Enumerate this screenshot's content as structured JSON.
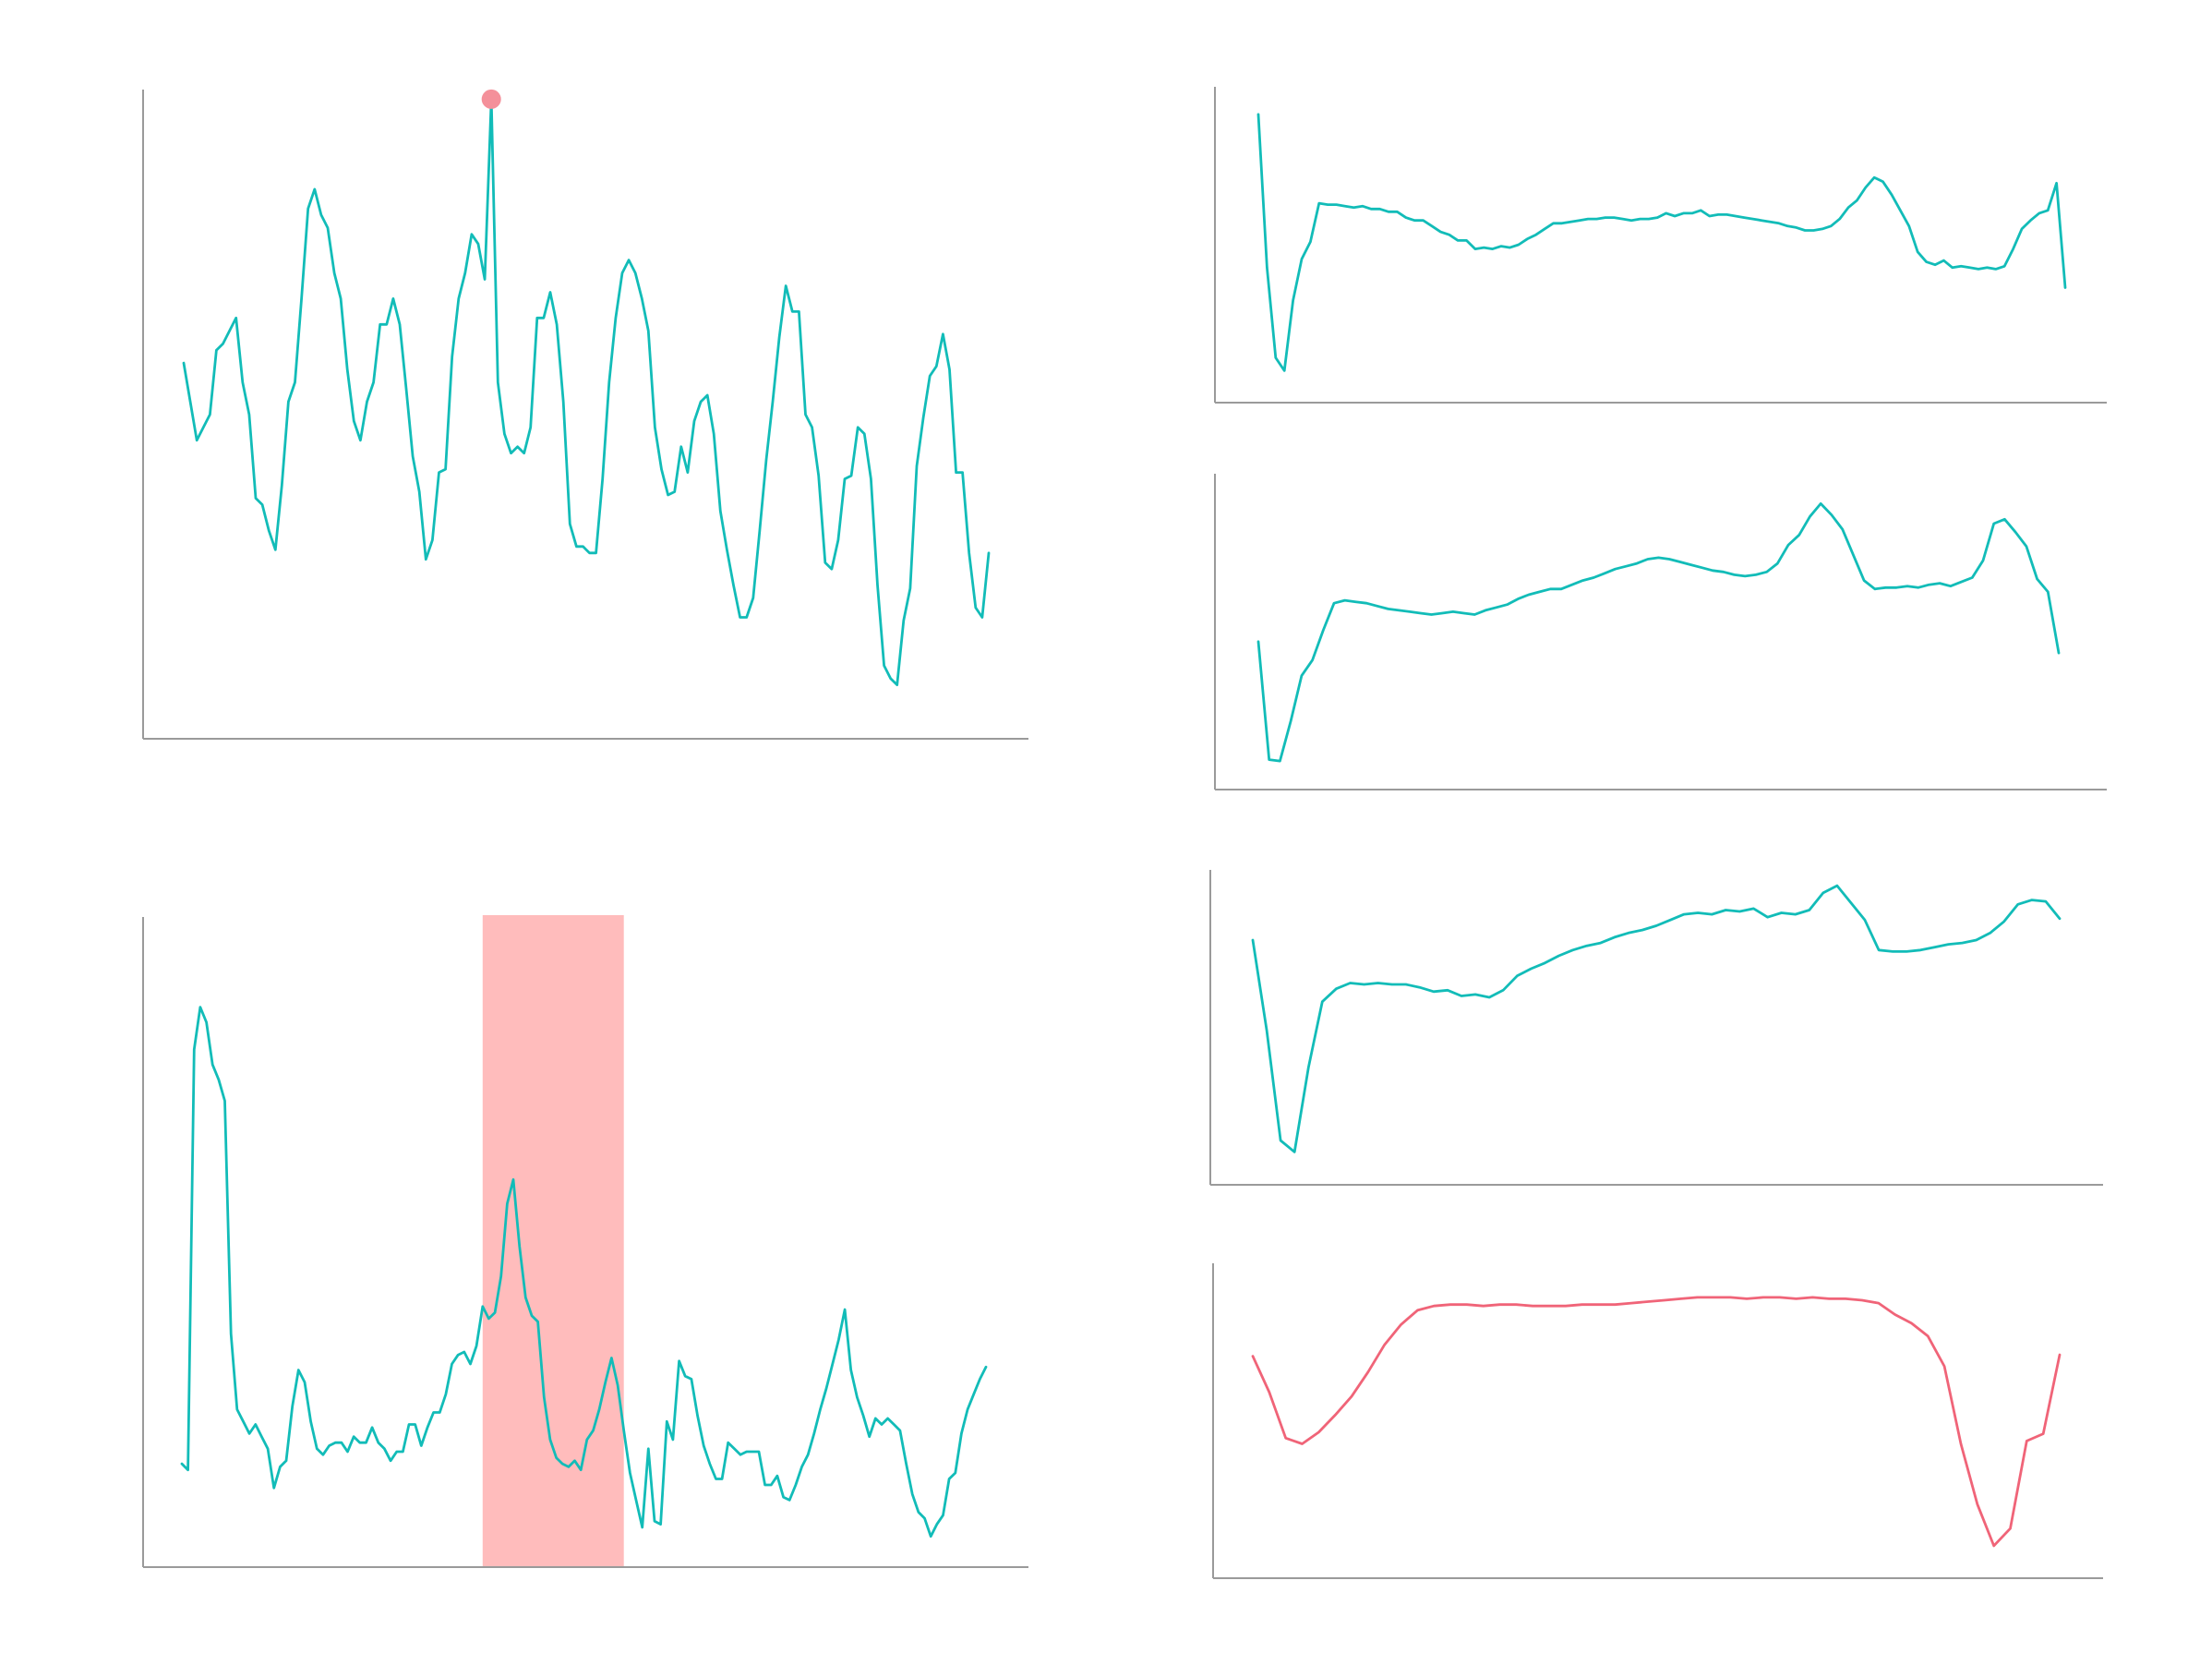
{
  "palette": {
    "primary": "#12bcb8",
    "alert": "#f06478",
    "marker": "#f4909a",
    "highlight": "#ff9c9c",
    "axis": "#9a9a9a"
  },
  "chart_data": [
    {
      "type": "line",
      "title": "",
      "xlabel": "",
      "ylabel": "",
      "grid": false,
      "axis_ticks": false,
      "ylim": [
        0,
        100
      ],
      "series": [
        {
          "color": "#12bcb8",
          "values": [
            54.5,
            48.5,
            42.5,
            44.5,
            46.5,
            56.5,
            57.5,
            59.5,
            61.5,
            51.5,
            46.5,
            33.5,
            32.5,
            28.5,
            25.5,
            35.5,
            48.5,
            51.5,
            64.5,
            78.5,
            81.5,
            77.5,
            75.5,
            68.5,
            64.5,
            53.5,
            45.5,
            42.5,
            48.5,
            51.5,
            60.5,
            60.5,
            64.5,
            60.5,
            50.5,
            40.0,
            34.5,
            24.0,
            27.0,
            37.5,
            38.0,
            55.5,
            64.5,
            68.5,
            74.5,
            73.0,
            67.5,
            95.5,
            51.5,
            43.5,
            40.5,
            41.5,
            40.5,
            44.5,
            61.5,
            61.5,
            65.5,
            60.5,
            48.5,
            29.5,
            26.0,
            26.0,
            25.0,
            25.0,
            36.5,
            51.5,
            61.5,
            68.5,
            70.5,
            68.5,
            64.5,
            59.5,
            44.5,
            38.0,
            34.0,
            34.5,
            41.5,
            37.5,
            45.5,
            48.5,
            49.5,
            43.5,
            31.5,
            25.5,
            20.0,
            15.0,
            15.0,
            18.0,
            28.5,
            39.5,
            48.5,
            58.5,
            66.5,
            62.5,
            62.5,
            46.5,
            44.5,
            37.0,
            23.5,
            22.5,
            27.0,
            36.5,
            37.0,
            44.5,
            43.5,
            36.5,
            20.0,
            7.5,
            5.5,
            4.5,
            14.5,
            19.5,
            38.5,
            46.0,
            52.5,
            54.0,
            59.0,
            53.5,
            37.5,
            37.5,
            25.0,
            16.5,
            15.0,
            25.0
          ]
        }
      ],
      "annotations": [
        {
          "kind": "point",
          "index": 47,
          "color": "#f4909a"
        }
      ]
    },
    {
      "type": "line",
      "title": "",
      "xlabel": "",
      "ylabel": "",
      "grid": false,
      "axis_ticks": false,
      "ylim": [
        0,
        100
      ],
      "series": [
        {
          "color": "#12bcb8",
          "values": [
            12.5,
            11.5,
            81.0,
            88.0,
            85.5,
            78.5,
            76.0,
            72.5,
            34.0,
            21.5,
            19.5,
            17.5,
            19.0,
            17.0,
            15.0,
            8.5,
            12.0,
            13.0,
            22.0,
            28.0,
            26.0,
            19.5,
            15.0,
            14.0,
            15.5,
            16.0,
            16.0,
            14.5,
            17.0,
            16.0,
            16.0,
            18.5,
            16.0,
            15.0,
            13.0,
            14.5,
            14.5,
            19.0,
            19.0,
            15.5,
            18.5,
            21.0,
            21.0,
            24.0,
            29.0,
            30.5,
            31.0,
            29.0,
            32.0,
            38.5,
            36.5,
            37.5,
            43.5,
            55.5,
            59.5,
            48.5,
            40.0,
            37.0,
            36.0,
            23.5,
            16.5,
            13.5,
            12.5,
            12.0,
            13.0,
            11.5,
            16.5,
            18.0,
            21.5,
            26.0,
            30.0,
            25.5,
            18.0,
            11.0,
            6.5,
            2.0,
            15.0,
            3.0,
            2.5,
            19.5,
            16.5,
            29.5,
            27.0,
            26.5,
            20.5,
            15.5,
            12.5,
            10.0,
            10.0,
            16.0,
            15.0,
            14.0,
            14.5,
            14.5,
            14.5,
            9.0,
            9.0,
            10.5,
            7.0,
            6.5,
            9.0,
            12.0,
            14.0,
            17.5,
            21.5,
            25.0,
            29.0,
            33.0,
            38.0,
            28.0,
            23.5,
            20.5,
            17.0,
            20.0,
            19.0,
            20.0,
            19.0,
            18.0,
            12.5,
            7.5,
            4.5,
            3.5,
            0.5,
            2.5,
            4.0,
            10.0,
            11.0,
            17.5,
            21.5,
            24.0,
            26.5,
            28.5
          ]
        }
      ],
      "annotations": [
        {
          "kind": "span",
          "from_index": 49,
          "to_index": 72,
          "color": "#ff9c9c"
        }
      ]
    },
    {
      "type": "line",
      "title": "",
      "xlabel": "",
      "ylabel": "",
      "grid": false,
      "axis_ticks": false,
      "ylim": [
        0,
        100
      ],
      "series": [
        {
          "color": "#12bcb8",
          "values": [
            95.5,
            42.0,
            10.5,
            6.0,
            30.5,
            45.0,
            51.0,
            64.5,
            64.0,
            64.0,
            63.5,
            63.0,
            63.5,
            62.5,
            62.5,
            61.5,
            61.5,
            59.5,
            58.5,
            58.5,
            56.5,
            54.5,
            53.5,
            51.5,
            51.5,
            48.5,
            49.0,
            48.5,
            49.5,
            49.0,
            50.0,
            52.0,
            53.5,
            55.5,
            57.5,
            57.5,
            58.0,
            58.5,
            59.0,
            59.0,
            59.5,
            59.5,
            59.0,
            58.5,
            59.0,
            59.0,
            59.5,
            61.0,
            60.0,
            61.0,
            61.0,
            62.0,
            60.0,
            60.5,
            60.5,
            60.0,
            59.5,
            59.0,
            58.5,
            58.0,
            57.5,
            56.5,
            56.0,
            55.0,
            55.0,
            55.5,
            56.5,
            59.0,
            63.0,
            65.5,
            70.0,
            73.5,
            72.0,
            67.5,
            62.0,
            56.5,
            47.5,
            44.0,
            43.0,
            44.5,
            42.0,
            42.5,
            42.0,
            41.5,
            42.0,
            41.5,
            42.5,
            48.5,
            55.5,
            58.5,
            61.0,
            62.0,
            71.5,
            35.0
          ]
        }
      ]
    },
    {
      "type": "line",
      "title": "",
      "xlabel": "",
      "ylabel": "",
      "grid": false,
      "axis_ticks": false,
      "ylim": [
        0,
        100
      ],
      "series": [
        {
          "color": "#12bcb8",
          "values": [
            46.5,
            5.0,
            4.5,
            18.5,
            34.5,
            40.0,
            50.5,
            60.0,
            61.0,
            60.5,
            60.0,
            59.0,
            58.0,
            57.5,
            57.0,
            56.5,
            56.0,
            56.5,
            57.0,
            56.5,
            56.0,
            57.5,
            58.5,
            59.5,
            61.5,
            63.0,
            64.0,
            65.0,
            65.0,
            66.5,
            68.0,
            69.0,
            70.5,
            72.0,
            73.0,
            74.0,
            75.5,
            76.0,
            75.5,
            74.5,
            73.5,
            72.5,
            71.5,
            71.0,
            70.0,
            69.5,
            70.0,
            71.0,
            74.0,
            80.5,
            84.0,
            90.5,
            95.0,
            91.0,
            86.0,
            77.0,
            68.0,
            65.0,
            65.5,
            65.5,
            66.0,
            65.5,
            66.5,
            67.0,
            66.0,
            67.5,
            69.0,
            75.0,
            88.0,
            89.5,
            85.0,
            80.0,
            68.5,
            64.0,
            42.5
          ]
        }
      ]
    },
    {
      "type": "line",
      "title": "",
      "xlabel": "",
      "ylabel": "",
      "grid": false,
      "axis_ticks": false,
      "ylim": [
        0,
        100
      ],
      "series": [
        {
          "color": "#12bcb8",
          "values": [
            80.0,
            48.5,
            10.0,
            6.0,
            35.5,
            58.5,
            63.0,
            65.0,
            64.5,
            65.0,
            64.5,
            64.5,
            63.5,
            62.0,
            62.5,
            60.5,
            61.0,
            60.0,
            62.5,
            67.5,
            70.0,
            72.0,
            74.5,
            76.5,
            78.0,
            79.0,
            81.0,
            82.5,
            83.5,
            85.0,
            87.0,
            89.0,
            89.5,
            89.0,
            90.5,
            90.0,
            91.0,
            88.0,
            89.5,
            89.0,
            90.5,
            96.5,
            99.0,
            93.0,
            87.0,
            76.5,
            76.0,
            76.0,
            76.5,
            77.5,
            78.5,
            79.0,
            80.0,
            82.5,
            86.5,
            92.5,
            94.0,
            93.5,
            87.5
          ]
        }
      ]
    },
    {
      "type": "line",
      "title": "",
      "xlabel": "",
      "ylabel": "",
      "grid": false,
      "axis_ticks": false,
      "ylim": [
        0,
        100
      ],
      "series": [
        {
          "color": "#f06478",
          "values": [
            71.5,
            59.0,
            43.0,
            41.0,
            45.0,
            51.0,
            57.5,
            66.0,
            75.5,
            82.5,
            87.5,
            89.0,
            89.5,
            89.5,
            89.0,
            89.5,
            89.5,
            89.0,
            89.0,
            89.0,
            89.5,
            89.5,
            89.5,
            90.0,
            90.5,
            91.0,
            91.5,
            92.0,
            92.0,
            92.0,
            91.5,
            92.0,
            92.0,
            91.5,
            92.0,
            91.5,
            91.5,
            91.0,
            90.0,
            86.0,
            83.0,
            78.5,
            68.0,
            41.0,
            20.0,
            5.5,
            11.5,
            42.0,
            44.5,
            72.0
          ]
        }
      ]
    }
  ]
}
